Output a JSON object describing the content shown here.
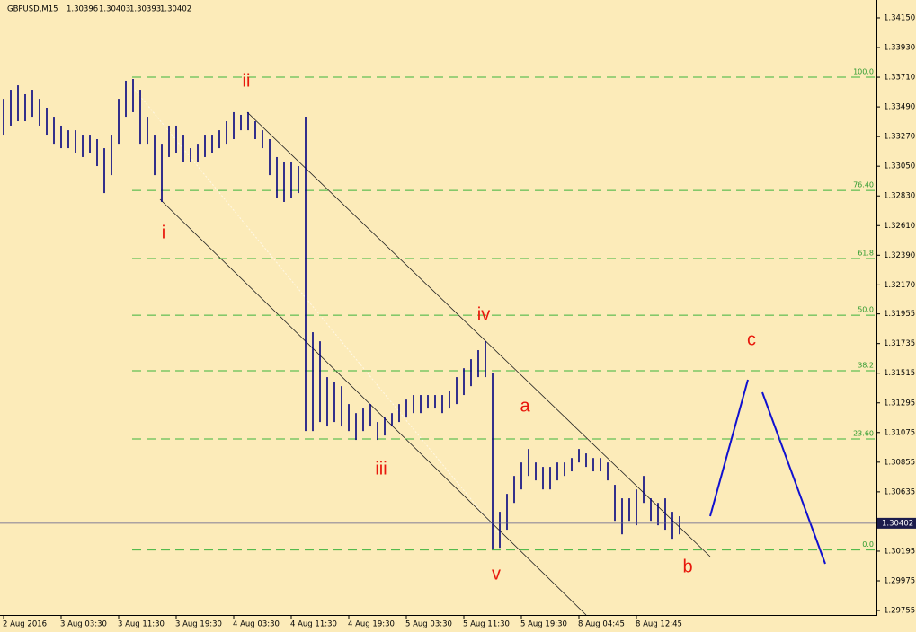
{
  "chart_data": {
    "type": "hl_bar",
    "symbol": "GBPUSD,M15",
    "ohlc": [
      1.30396,
      1.30403,
      1.30393,
      1.30402
    ],
    "last_price": 1.30402,
    "color": "#000080",
    "background": "#fcebb9",
    "fib_color": "#3cb43c",
    "xlim": [
      -0.5,
      121.375
    ],
    "ylim": [
      1.29722,
      1.34283
    ],
    "yticks": [
      {
        "value": 1.3415,
        "label": "1.34150"
      },
      {
        "value": 1.3393,
        "label": "1.33930"
      },
      {
        "value": 1.3371,
        "label": "1.33710"
      },
      {
        "value": 1.3349,
        "label": "1.33490"
      },
      {
        "value": 1.3327,
        "label": "1.33270"
      },
      {
        "value": 1.3305,
        "label": "1.33050"
      },
      {
        "value": 1.3283,
        "label": "1.32830"
      },
      {
        "value": 1.3261,
        "label": "1.32610"
      },
      {
        "value": 1.3239,
        "label": "1.32390"
      },
      {
        "value": 1.3217,
        "label": "1.32170"
      },
      1.31955,
      1.31735,
      1.31515,
      1.31295,
      1.31075,
      1.30855,
      1.30635,
      1.30195,
      1.29975,
      1.29755
    ],
    "xticks": [
      {
        "value": 0,
        "label": "2 Aug 2016"
      },
      {
        "value": 8,
        "label": "3 Aug 03:30"
      },
      {
        "value": 16,
        "label": "3 Aug 11:30"
      },
      {
        "value": 24,
        "label": "3 Aug 19:30"
      },
      {
        "value": 32,
        "label": "4 Aug 03:30"
      },
      {
        "value": 40,
        "label": "4 Aug 11:30"
      },
      {
        "value": 48,
        "label": "4 Aug 19:30"
      },
      {
        "value": 56,
        "label": "5 Aug 03:30"
      },
      {
        "value": 64,
        "label": "5 Aug 11:30"
      },
      {
        "value": 72,
        "label": "5 Aug 19:30"
      },
      {
        "value": 80,
        "label": "8 Aug 04:45"
      },
      {
        "value": 88,
        "label": "8 Aug 12:45"
      }
    ],
    "high": [
      1.3355,
      1.33617,
      1.3365,
      1.33584,
      1.33617,
      1.3355,
      1.33484,
      1.33417,
      1.33351,
      1.33317,
      1.33317,
      1.33284,
      1.33284,
      1.33251,
      1.33184,
      1.33284,
      1.3355,
      1.33684,
      1.33697,
      1.33617,
      1.33417,
      1.33284,
      1.33217,
      1.33351,
      1.33351,
      1.33284,
      1.33184,
      1.33217,
      1.33284,
      1.33284,
      1.33317,
      1.33384,
      1.33451,
      1.33431,
      1.33451,
      1.33384,
      1.33317,
      1.33251,
      1.33118,
      1.33084,
      1.33084,
      1.33051,
      1.33417,
      1.31819,
      1.31752,
      1.31486,
      1.31453,
      1.31419,
      1.31286,
      1.31219,
      1.31253,
      1.31286,
      1.31153,
      1.31186,
      1.31219,
      1.31286,
      1.31319,
      1.31353,
      1.31353,
      1.31353,
      1.31353,
      1.31353,
      1.31386,
      1.31486,
      1.31552,
      1.31619,
      1.31686,
      1.31752,
      1.31519,
      1.30487,
      1.3062,
      1.30753,
      1.30853,
      1.30953,
      1.30853,
      1.3082,
      1.3082,
      1.30853,
      1.30853,
      1.30886,
      1.30953,
      1.3092,
      1.30886,
      1.30886,
      1.30853,
      1.30687,
      1.30587,
      1.30587,
      1.30653,
      1.30753,
      1.30587,
      1.30553,
      1.30587,
      1.30487,
      1.30454
    ],
    "low": [
      1.33284,
      1.33351,
      1.33384,
      1.33384,
      1.33417,
      1.33351,
      1.33284,
      1.33217,
      1.33184,
      1.33184,
      1.33151,
      1.33118,
      1.33151,
      1.33051,
      1.32851,
      1.32984,
      1.33217,
      1.33417,
      1.33451,
      1.33217,
      1.33217,
      1.32984,
      1.32785,
      1.33118,
      1.33151,
      1.33084,
      1.33084,
      1.33084,
      1.33118,
      1.33151,
      1.33184,
      1.33217,
      1.33251,
      1.33317,
      1.33317,
      1.33251,
      1.33184,
      1.32984,
      1.32818,
      1.32785,
      1.32818,
      1.32851,
      1.31086,
      1.31086,
      1.31153,
      1.3112,
      1.31153,
      1.3112,
      1.31086,
      1.3102,
      1.31086,
      1.3112,
      1.3102,
      1.31053,
      1.3112,
      1.31153,
      1.31186,
      1.31219,
      1.31219,
      1.31253,
      1.31253,
      1.31219,
      1.31253,
      1.31286,
      1.31353,
      1.31419,
      1.31486,
      1.31486,
      1.30207,
      1.3022,
      1.30354,
      1.30553,
      1.30653,
      1.30753,
      1.3072,
      1.30653,
      1.30653,
      1.3072,
      1.30753,
      1.30787,
      1.30853,
      1.3082,
      1.30787,
      1.30787,
      1.3072,
      1.3042,
      1.3032,
      1.3042,
      1.30387,
      1.30553,
      1.3042,
      1.30387,
      1.30354,
      1.30287,
      1.3032
    ],
    "fib_levels": [
      {
        "label": "100.0",
        "price": 1.3371
      },
      {
        "label": "76.40",
        "price": 1.32871
      },
      {
        "label": "61.8",
        "price": 1.32365
      },
      {
        "label": "50.0",
        "price": 1.31945
      },
      {
        "label": "38.2",
        "price": 1.31533
      },
      {
        "label": "23.60",
        "price": 1.31027
      },
      {
        "label": "0.0",
        "price": 1.30204
      }
    ],
    "waves": [
      "i",
      "ii",
      "iii",
      "iv",
      "v",
      "a",
      "b",
      "c"
    ]
  }
}
